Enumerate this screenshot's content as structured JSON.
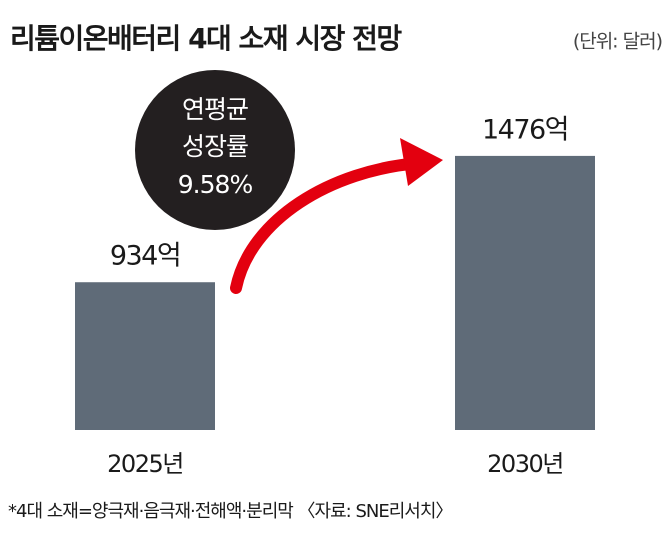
{
  "chart_data": {
    "type": "bar",
    "title": "리튬이온배터리 4대 소재 시장 전망",
    "subtitle": "(단위: 달러)",
    "categories": [
      "2025년",
      "2030년"
    ],
    "values": [
      934,
      1476
    ],
    "value_labels": [
      "934억",
      "1476억"
    ],
    "color": "#5f6b78",
    "ylim": [
      300,
      1600
    ],
    "annotation": [
      "연평균",
      "성장률",
      "9.58%"
    ],
    "footnote": "*4대 소재=양극재·음극재·전해액·분리막 〈자료: SNE리서치〉"
  }
}
